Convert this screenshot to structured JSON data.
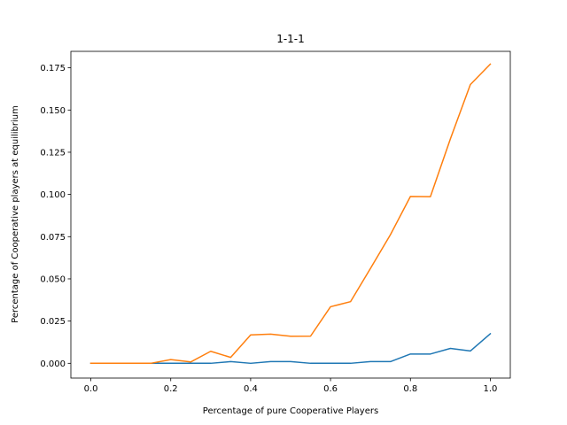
{
  "chart_data": {
    "type": "line",
    "title": "1-1-1",
    "xlabel": "Percentage of pure Cooperative Players",
    "ylabel": "Percentage of Cooperative players at equilibrium",
    "xlim": [
      -0.05,
      1.05
    ],
    "ylim": [
      -0.00875,
      0.18475
    ],
    "xticks": [
      0.0,
      0.2,
      0.4,
      0.6,
      0.8,
      1.0
    ],
    "xtick_labels": [
      "0.0",
      "0.2",
      "0.4",
      "0.6",
      "0.8",
      "1.0"
    ],
    "yticks": [
      0.0,
      0.025,
      0.05,
      0.075,
      0.1,
      0.125,
      0.15,
      0.175
    ],
    "ytick_labels": [
      "0.000",
      "0.025",
      "0.050",
      "0.075",
      "0.100",
      "0.125",
      "0.150",
      "0.175"
    ],
    "grid": false,
    "x": [
      0.0,
      0.05,
      0.1,
      0.15,
      0.2,
      0.25,
      0.3,
      0.35,
      0.4,
      0.45,
      0.5,
      0.55,
      0.6,
      0.65,
      0.7,
      0.75,
      0.8,
      0.85,
      0.9,
      0.95,
      1.0
    ],
    "series": [
      {
        "color": "#1f77b4",
        "values": [
          0.0,
          0.0,
          0.0,
          0.0,
          0.0,
          0.0,
          0.0,
          0.001,
          0.0,
          0.001,
          0.001,
          0.0,
          0.0,
          0.0,
          0.001,
          0.001,
          0.0055,
          0.0055,
          0.0088,
          0.0073,
          0.0175
        ]
      },
      {
        "color": "#ff7f0e",
        "values": [
          0.0,
          0.0,
          0.0,
          0.0,
          0.0022,
          0.0008,
          0.0071,
          0.0035,
          0.0168,
          0.0173,
          0.016,
          0.0161,
          0.0335,
          0.0365,
          0.0562,
          0.0762,
          0.0988,
          0.0987,
          0.1329,
          0.1651,
          0.1772
        ]
      }
    ]
  }
}
